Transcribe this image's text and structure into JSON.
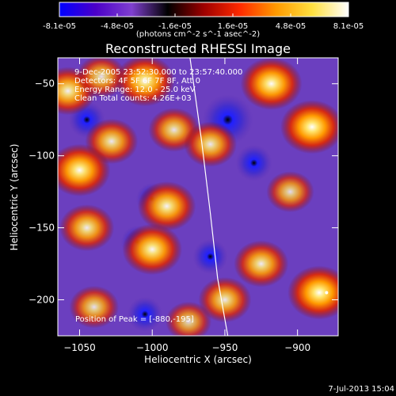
{
  "colorbar": {
    "ticks": [
      "-8.1e-05",
      "-4.8e-05",
      "-1.6e-05",
      "1.6e-05",
      "4.8e-05",
      "8.1e-05"
    ],
    "unit_label": "(photons cm^-2 s^-1 asec^-2)",
    "colors": [
      "#0000ff",
      "#4b00c8",
      "#7f3fcf",
      "#000000",
      "#9e0000",
      "#ff2a00",
      "#ff9a00",
      "#ffe040",
      "#ffffff"
    ]
  },
  "title": "Reconstructed RHESSI Image",
  "info_lines": [
    "9-Dec-2005 23:52:30.000 to 23:57:40.000",
    "Detectors: 4F 5F 6F 7F 8F, Att 0",
    "Energy Range: 12.0 - 25.0 keV",
    "Clean  Total counts: 4.26E+03"
  ],
  "peak_text": "Position of Peak = [-880,-195]",
  "timestamp": "7-Jul-2013 15:04",
  "chart_data": {
    "type": "heatmap",
    "title": "Reconstructed RHESSI Image",
    "xlabel": "Heliocentric X (arcsec)",
    "ylabel": "Heliocentric Y (arcsec)",
    "xlim": [
      -1065,
      -872
    ],
    "ylim": [
      -225,
      -32
    ],
    "xticks": [
      -1050,
      -1000,
      -950,
      -900
    ],
    "yticks": [
      -50,
      -100,
      -150,
      -200
    ],
    "xtick_labels": [
      "−1050",
      "−1000",
      "−950",
      "−900"
    ],
    "ytick_labels": [
      "−50",
      "−100",
      "−150",
      "−200"
    ],
    "color_range": [
      -8.1e-05,
      8.1e-05
    ],
    "peak": {
      "x": -880,
      "y": -195
    },
    "limb_curve": [
      {
        "x": -974,
        "y": -32
      },
      {
        "x": -966,
        "y": -90
      },
      {
        "x": -960,
        "y": -140
      },
      {
        "x": -955,
        "y": -185
      },
      {
        "x": -948,
        "y": -225
      }
    ],
    "sources": [
      {
        "x": -1058,
        "y": -55,
        "v": 0.8
      },
      {
        "x": -1035,
        "y": -45,
        "v": 0.6
      },
      {
        "x": -1005,
        "y": -48,
        "v": 0.9
      },
      {
        "x": -985,
        "y": -82,
        "v": 0.65
      },
      {
        "x": -1028,
        "y": -90,
        "v": 0.7
      },
      {
        "x": -1050,
        "y": -110,
        "v": 0.95
      },
      {
        "x": -1045,
        "y": -150,
        "v": 0.75
      },
      {
        "x": -990,
        "y": -135,
        "v": 0.85
      },
      {
        "x": -1000,
        "y": -165,
        "v": 0.9
      },
      {
        "x": -960,
        "y": -92,
        "v": 0.7
      },
      {
        "x": -918,
        "y": -50,
        "v": 0.95
      },
      {
        "x": -890,
        "y": -80,
        "v": 1.0
      },
      {
        "x": -905,
        "y": -125,
        "v": 0.55
      },
      {
        "x": -925,
        "y": -175,
        "v": 0.75
      },
      {
        "x": -885,
        "y": -195,
        "v": 1.0
      },
      {
        "x": -950,
        "y": -200,
        "v": 0.7
      },
      {
        "x": -1040,
        "y": -205,
        "v": 0.6
      },
      {
        "x": -975,
        "y": -215,
        "v": 0.5
      }
    ],
    "negatives": [
      {
        "x": -948,
        "y": -75,
        "v": 1.0
      },
      {
        "x": -1045,
        "y": -75,
        "v": 0.5
      },
      {
        "x": -1010,
        "y": -160,
        "v": 0.4
      },
      {
        "x": -1000,
        "y": -130,
        "v": 0.35
      },
      {
        "x": -930,
        "y": -105,
        "v": 0.5
      },
      {
        "x": -960,
        "y": -170,
        "v": 0.45
      },
      {
        "x": -1005,
        "y": -210,
        "v": 0.45
      }
    ]
  }
}
